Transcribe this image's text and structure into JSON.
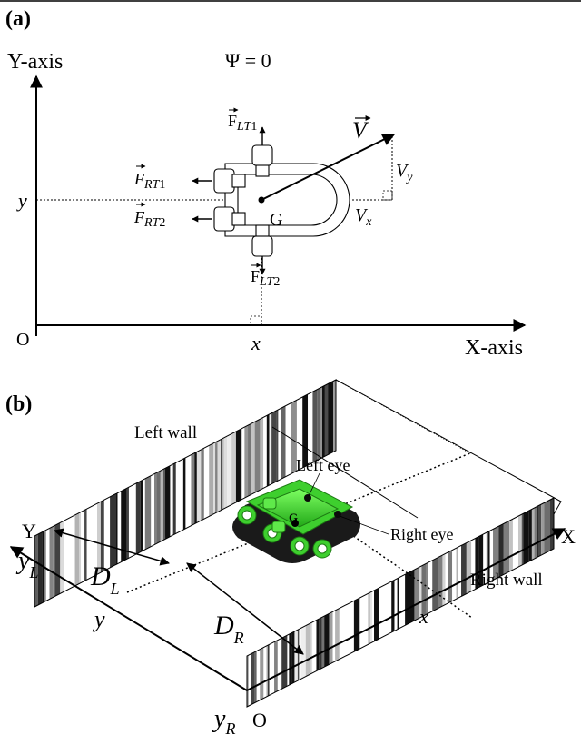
{
  "panel_a": {
    "label": "(a)",
    "y_axis_label": "Y-axis",
    "x_axis_label": "X-axis",
    "psi_label": "Ψ = 0",
    "origin_label": "O",
    "x_mark": "x",
    "y_mark": "y",
    "g_label": "G",
    "v_label": "V",
    "vx": {
      "base": "V",
      "sub": "x"
    },
    "vy": {
      "base": "V",
      "sub": "y"
    },
    "f_lt1": {
      "base": "F",
      "sub": "LT",
      "num": "1"
    },
    "f_lt2": {
      "base": "F",
      "sub": "LT",
      "num": "2"
    },
    "f_rt1": {
      "base": "F",
      "sub": "RT",
      "num": "1"
    },
    "f_rt2": {
      "base": "F",
      "sub": "RT",
      "num": "2"
    }
  },
  "panel_b": {
    "label": "(b)",
    "left_wall": "Left wall",
    "right_wall": "Right wall",
    "left_eye": "Left eye",
    "right_eye": "Right eye",
    "g_label": "G",
    "x_axis": "X",
    "y_axis": "Y",
    "origin": "O",
    "x_mark": "x",
    "y_mark": "y",
    "dl": {
      "base": "D",
      "sub": "L"
    },
    "dr": {
      "base": "D",
      "sub": "R"
    },
    "yl": {
      "base": "y",
      "sub": "L"
    },
    "yr": {
      "base": "y",
      "sub": "R"
    },
    "robot_color": "#3ecf2e",
    "base_color": "#1a1a1a"
  }
}
